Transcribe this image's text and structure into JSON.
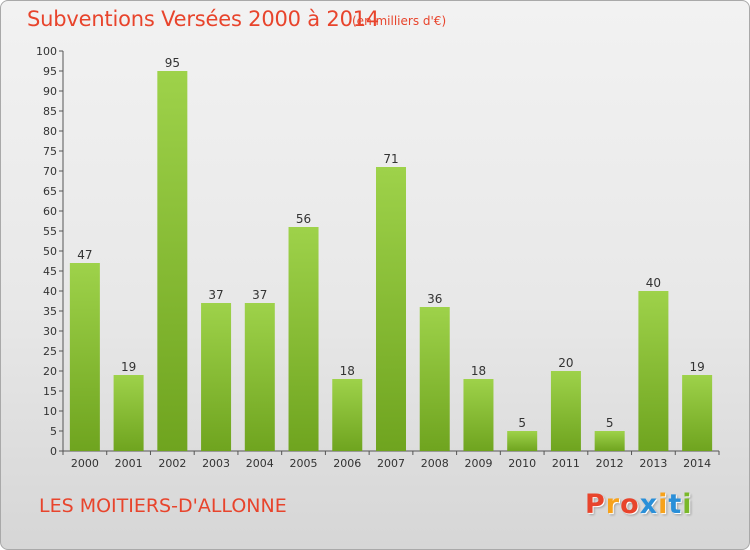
{
  "header": {
    "title": "Subventions Versées 2000 à 2014",
    "subtitle": "(en milliers d'€)"
  },
  "footer": {
    "commune": "LES MOITIERS-D'ALLONNE",
    "logo_letters": [
      "P",
      "r",
      "o",
      "x",
      "i",
      "t",
      "i"
    ],
    "logo_colors": [
      "#e8442c",
      "#f7a21b",
      "#e8442c",
      "#2a8fd8",
      "#f7a21b",
      "#2a8fd8",
      "#7ab82a"
    ]
  },
  "colors": {
    "bar_light": "#9ed24a",
    "bar_dark": "#6fa41f",
    "text": "#333333",
    "accent": "#e8442c"
  },
  "chart_data": {
    "type": "bar",
    "title": "Subventions Versées 2000 à 2014",
    "subtitle": "(en milliers d'€)",
    "categories": [
      "2000",
      "2001",
      "2002",
      "2003",
      "2004",
      "2005",
      "2006",
      "2007",
      "2008",
      "2009",
      "2010",
      "2011",
      "2012",
      "2013",
      "2014"
    ],
    "values": [
      47,
      19,
      95,
      37,
      37,
      56,
      18,
      71,
      36,
      18,
      5,
      20,
      5,
      40,
      19
    ],
    "ylim": [
      0,
      100
    ],
    "yticks": [
      0,
      5,
      10,
      15,
      20,
      25,
      30,
      35,
      40,
      45,
      50,
      55,
      60,
      65,
      70,
      75,
      80,
      85,
      90,
      95,
      100
    ],
    "grid": false,
    "legend": "none"
  }
}
